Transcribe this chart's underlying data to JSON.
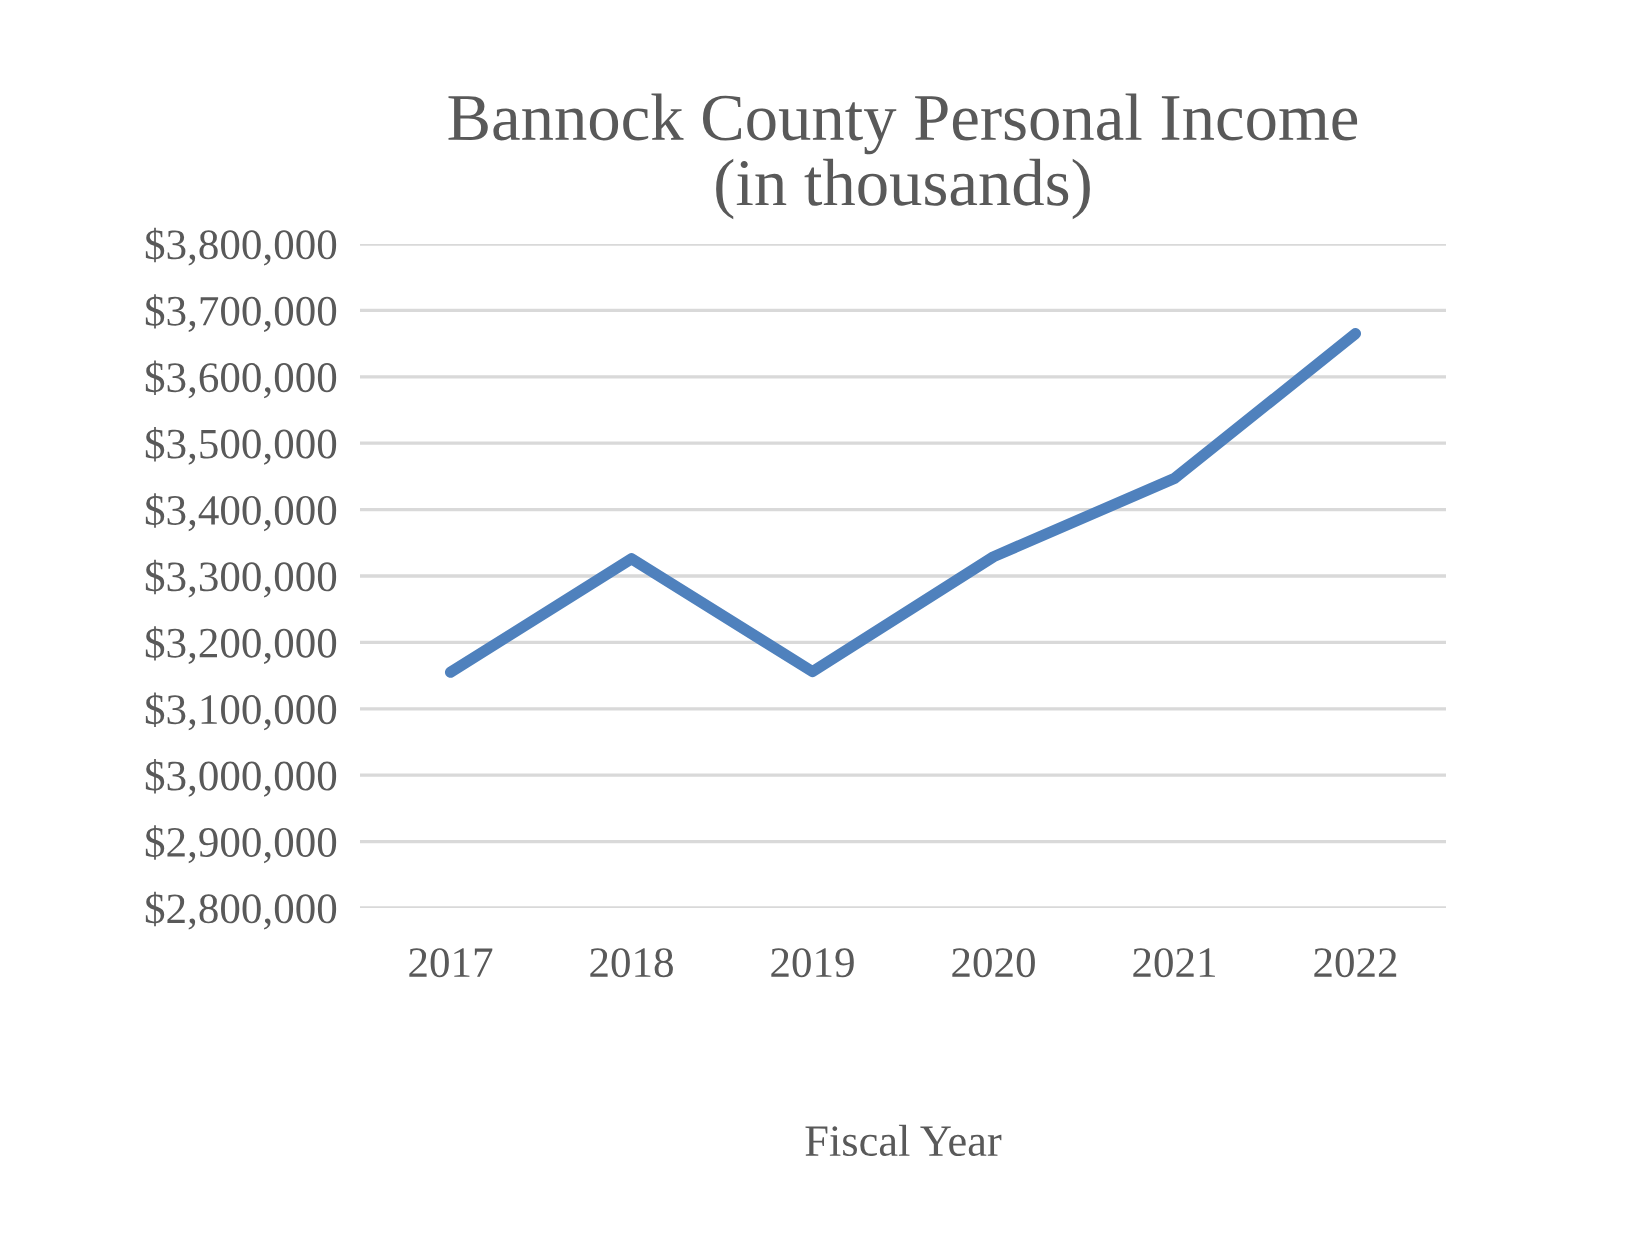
{
  "chart_data": {
    "type": "line",
    "title": "Bannock County Personal Income\n(in thousands)",
    "xlabel": "Fiscal Year",
    "categories": [
      "2017",
      "2018",
      "2019",
      "2020",
      "2021",
      "2022"
    ],
    "series": [
      {
        "color": "#4f81bd",
        "values": [
          3155000,
          3326000,
          3156000,
          3329000,
          3447000,
          3665000
        ]
      }
    ],
    "ylim": [
      2800000,
      3800000
    ],
    "yticks": [
      {
        "value": 2800000,
        "label": "$2,800,000"
      },
      {
        "value": 2900000,
        "label": "$2,900,000"
      },
      {
        "value": 3000000,
        "label": "$3,000,000"
      },
      {
        "value": 3100000,
        "label": "$3,100,000"
      },
      {
        "value": 3200000,
        "label": "$3,200,000"
      },
      {
        "value": 3300000,
        "label": "$3,300,000"
      },
      {
        "value": 3400000,
        "label": "$3,400,000"
      },
      {
        "value": 3500000,
        "label": "$3,500,000"
      },
      {
        "value": 3600000,
        "label": "$3,600,000"
      },
      {
        "value": 3700000,
        "label": "$3,700,000"
      },
      {
        "value": 3800000,
        "label": "$3,800,000"
      }
    ],
    "grid": "y",
    "marker": "none",
    "line_style": "solid"
  }
}
